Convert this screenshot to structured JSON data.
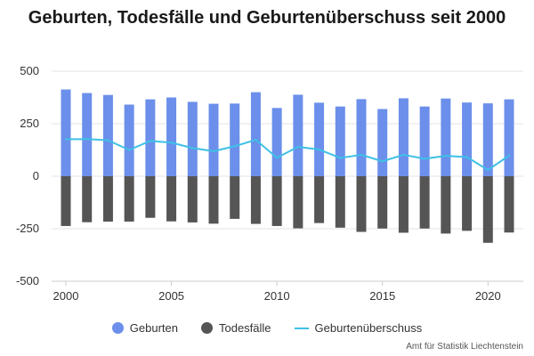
{
  "chart_data": {
    "type": "bar",
    "title": "Geburten, Todesfälle und Geburtenüberschuss seit 2000",
    "x": [
      2000,
      2001,
      2002,
      2003,
      2004,
      2005,
      2006,
      2007,
      2008,
      2009,
      2010,
      2011,
      2012,
      2013,
      2014,
      2015,
      2016,
      2017,
      2018,
      2019,
      2020,
      2021
    ],
    "xticks": [
      "2000",
      "2005",
      "2010",
      "2015",
      "2020"
    ],
    "yticks": [
      "500",
      "250",
      "0",
      "-250",
      "-500"
    ],
    "ylim": [
      -500,
      500
    ],
    "grid": true,
    "legend_position": "bottom",
    "series": [
      {
        "name": "Geburten",
        "type": "bar",
        "color": "#6b8fea",
        "values": [
          413,
          396,
          387,
          341,
          366,
          375,
          354,
          345,
          346,
          400,
          325,
          388,
          350,
          332,
          367,
          320,
          371,
          332,
          370,
          351,
          347,
          366
        ]
      },
      {
        "name": "Todesfälle",
        "type": "bar",
        "color": "#555555",
        "values": [
          -237,
          -219,
          -216,
          -216,
          -198,
          -215,
          -220,
          -226,
          -203,
          -227,
          -237,
          -248,
          -223,
          -245,
          -265,
          -249,
          -269,
          -249,
          -273,
          -260,
          -317,
          -268
        ]
      },
      {
        "name": "Geburtenüberschuss",
        "type": "line",
        "color": "#3fc0e6",
        "values": [
          176,
          177,
          171,
          125,
          168,
          160,
          134,
          119,
          143,
          173,
          88,
          140,
          127,
          87,
          102,
          71,
          102,
          83,
          97,
          91,
          30,
          98
        ]
      }
    ]
  },
  "source": "Amt für Statistik Liechtenstein"
}
